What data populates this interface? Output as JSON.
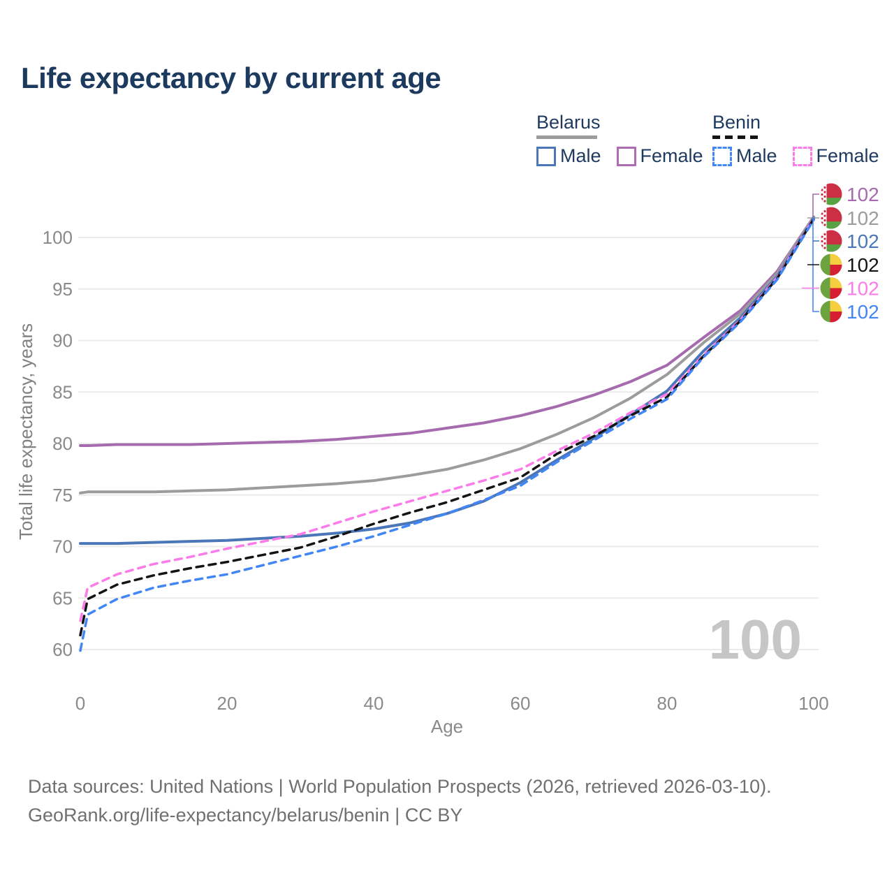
{
  "title": "Life expectancy by current age",
  "legend": {
    "groups": [
      {
        "label": "Belarus",
        "line_style": "solid",
        "items": [
          {
            "label": "Male",
            "color": "#4b77b9",
            "dashed": false
          },
          {
            "label": "Female",
            "color": "#af6cb2",
            "dashed": false
          }
        ]
      },
      {
        "label": "Benin",
        "line_style": "dashed",
        "items": [
          {
            "label": "Male",
            "color": "#4286f5",
            "dashed": true
          },
          {
            "label": "Female",
            "color": "#fb7ce8",
            "dashed": true
          }
        ]
      }
    ]
  },
  "chart_data": {
    "type": "line",
    "title": "Life expectancy by current age",
    "xlabel": "Age",
    "ylabel": "Total life expectancy, years",
    "grid": "horizontal",
    "legend_position": "top-right",
    "xlim": [
      0,
      100
    ],
    "ylim": [
      58.5,
      103
    ],
    "xticks": [
      0,
      20,
      40,
      60,
      80,
      100
    ],
    "yticks": [
      60,
      65,
      70,
      75,
      80,
      85,
      90,
      95,
      100
    ],
    "watermark": "100",
    "x": [
      0,
      1,
      5,
      10,
      15,
      20,
      25,
      30,
      35,
      40,
      45,
      50,
      55,
      60,
      65,
      70,
      75,
      80,
      85,
      90,
      95,
      100
    ],
    "series": [
      {
        "name": "Belarus Female",
        "country": "Belarus",
        "sex": "Female",
        "color": "#a66bae",
        "dashed": false,
        "end_label": "102",
        "values": [
          79.8,
          79.8,
          79.9,
          79.9,
          79.9,
          80.0,
          80.1,
          80.2,
          80.4,
          80.7,
          81.0,
          81.5,
          82.0,
          82.7,
          83.6,
          84.7,
          86.0,
          87.6,
          90.3,
          92.9,
          96.7,
          102.0
        ]
      },
      {
        "name": "Belarus (both sexes)",
        "country": "Belarus",
        "sex": "Both",
        "color": "#9c9c9c",
        "dashed": false,
        "end_label": "102",
        "values": [
          75.2,
          75.3,
          75.3,
          75.3,
          75.4,
          75.5,
          75.7,
          75.9,
          76.1,
          76.4,
          76.9,
          77.5,
          78.4,
          79.5,
          80.9,
          82.5,
          84.4,
          86.7,
          89.8,
          92.6,
          96.5,
          102.0
        ]
      },
      {
        "name": "Belarus Male",
        "country": "Belarus",
        "sex": "Male",
        "color": "#4b77b9",
        "dashed": false,
        "end_label": "102",
        "values": [
          70.3,
          70.3,
          70.3,
          70.4,
          70.5,
          70.6,
          70.8,
          71.0,
          71.3,
          71.7,
          72.3,
          73.2,
          74.4,
          76.2,
          78.4,
          80.5,
          82.8,
          85.1,
          89.0,
          92.2,
          96.2,
          101.9
        ]
      },
      {
        "name": "Benin Female",
        "country": "Benin",
        "sex": "Female",
        "color": "#fb7ce8",
        "dashed": true,
        "end_label": "102",
        "values": [
          62.8,
          66.0,
          67.3,
          68.3,
          69.0,
          69.8,
          70.5,
          71.2,
          72.3,
          73.4,
          74.4,
          75.4,
          76.4,
          77.5,
          79.3,
          81.0,
          83.0,
          84.8,
          88.6,
          92.0,
          96.1,
          101.9
        ]
      },
      {
        "name": "Benin (both sexes)",
        "country": "Benin",
        "sex": "Both",
        "color": "#141414",
        "dashed": true,
        "end_label": "102",
        "values": [
          61.4,
          64.9,
          66.3,
          67.2,
          67.9,
          68.5,
          69.2,
          69.9,
          71.0,
          72.2,
          73.3,
          74.3,
          75.5,
          76.7,
          79.0,
          80.7,
          82.7,
          84.5,
          88.5,
          91.9,
          96.0,
          101.8
        ]
      },
      {
        "name": "Benin Male",
        "country": "Benin",
        "sex": "Male",
        "color": "#4286f5",
        "dashed": true,
        "end_label": "102",
        "values": [
          59.9,
          63.4,
          64.9,
          66.0,
          66.7,
          67.3,
          68.2,
          69.1,
          70.0,
          71.0,
          72.1,
          73.2,
          74.5,
          75.9,
          78.2,
          80.3,
          82.4,
          84.3,
          88.4,
          91.8,
          95.9,
          101.7
        ]
      }
    ],
    "annotation_order": [
      0,
      1,
      2,
      4,
      3,
      5
    ],
    "flag_colors": {
      "belarus": {
        "red": "#cc2f44",
        "green": "#57a343",
        "white": "#ffffff"
      },
      "benin": {
        "green": "#6da33f",
        "yellow": "#f5cf3f",
        "red": "#d61f33"
      }
    }
  },
  "footer": {
    "line1": "Data sources: United Nations | World Population Prospects (2026, retrieved 2026-03-10).",
    "line2": "GeoRank.org/life-expectancy/belarus/benin | CC BY"
  }
}
